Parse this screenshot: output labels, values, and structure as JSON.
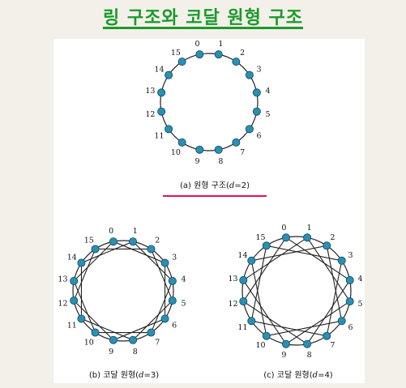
{
  "title": "링 구조와 코달 원형 구조",
  "node_labels": [
    "0",
    "1",
    "2",
    "3",
    "4",
    "5",
    "6",
    "7",
    "8",
    "9",
    "10",
    "11",
    "12",
    "13",
    "14",
    "15"
  ],
  "diagrams": [
    {
      "caption_prefix": "(a) 원형 구조(",
      "caption_var": "d",
      "caption_suffix": "=2)",
      "chord_skip": 0
    },
    {
      "caption_prefix": "(b) 코달 원형(",
      "caption_var": "d",
      "caption_suffix": "=3)",
      "chord_skip": 3
    },
    {
      "caption_prefix": "(c) 코달 원형(",
      "caption_var": "d",
      "caption_suffix": "=4)",
      "chord_skip": 4
    }
  ],
  "colors": {
    "title": "#1a9a2a",
    "node": "#2a8fb3",
    "underline": "#e0115f"
  }
}
